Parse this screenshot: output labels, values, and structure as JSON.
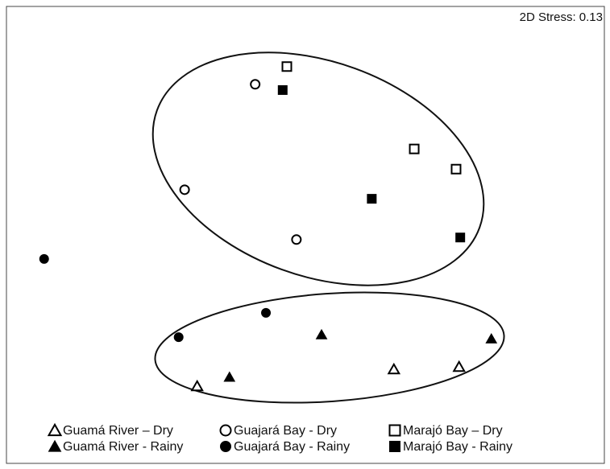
{
  "chart_data": {
    "type": "scatter",
    "annotation": "2D Stress: 0.13",
    "xlim": [
      0,
      100
    ],
    "ylim": [
      0,
      100
    ],
    "series": [
      {
        "name": "Guamá River – Dry",
        "color": "#000000",
        "marker": "triangle",
        "filled": false,
        "x": [
          31.9,
          64.8,
          75.7
        ],
        "values": [
          7.8,
          11.9,
          12.5
        ]
      },
      {
        "name": "Guajará Bay - Dry",
        "color": "#000000",
        "marker": "circle",
        "filled": false,
        "x": [
          41.6,
          29.8,
          48.5
        ],
        "values": [
          81.1,
          55.5,
          43.4
        ]
      },
      {
        "name": "Marajó Bay – Dry",
        "color": "#000000",
        "marker": "square",
        "filled": false,
        "x": [
          46.9,
          68.2,
          75.2
        ],
        "values": [
          85.4,
          65.4,
          60.5
        ]
      },
      {
        "name": "Guamá River - Rainy",
        "color": "#000000",
        "marker": "triangle",
        "filled": true,
        "x": [
          37.3,
          52.7,
          81.1
        ],
        "values": [
          10.0,
          20.3,
          19.3
        ]
      },
      {
        "name": "Guajará Bay - Rainy",
        "color": "#000000",
        "marker": "circle",
        "filled": true,
        "x": [
          6.3,
          43.4,
          28.8
        ],
        "values": [
          38.7,
          25.6,
          19.7
        ]
      },
      {
        "name": "Marajó Bay - Rainy",
        "color": "#000000",
        "marker": "square",
        "filled": true,
        "x": [
          46.2,
          61.1,
          75.9
        ],
        "values": [
          79.7,
          53.3,
          43.9
        ]
      }
    ]
  }
}
